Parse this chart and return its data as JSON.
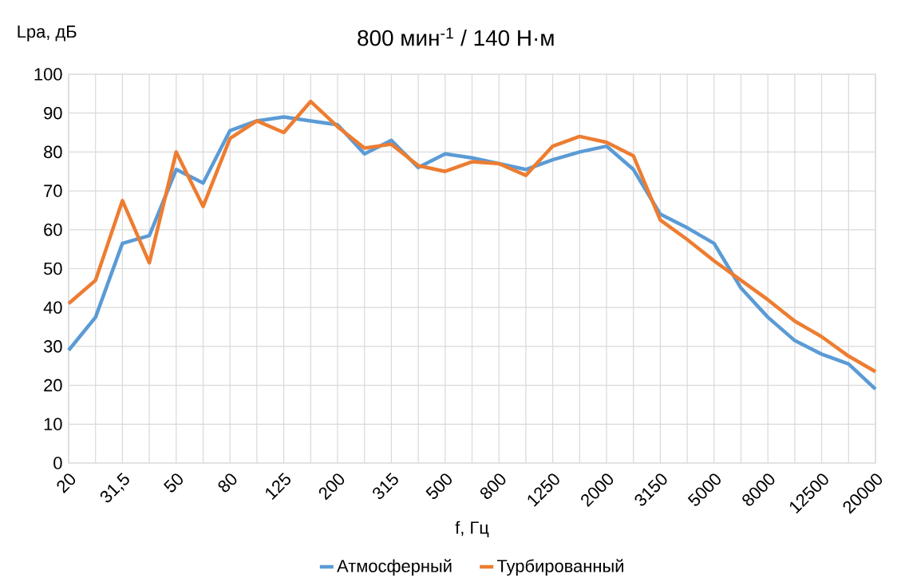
{
  "chart_data": {
    "type": "line",
    "title": "800 мин$^{-1}$ / 140 Н·м",
    "xlabel": "f, Гц",
    "ylabel": "Lpa, дБ",
    "categories": [
      "20",
      null,
      "31,5",
      null,
      "50",
      null,
      "80",
      null,
      "125",
      null,
      "200",
      null,
      "315",
      null,
      "500",
      null,
      "800",
      null,
      "1250",
      null,
      "2000",
      null,
      "3150",
      null,
      "5000",
      null,
      "8000",
      null,
      "12500",
      null,
      "20000"
    ],
    "series": [
      {
        "name": "Атмосферный",
        "color": "#5b9bd5",
        "values": [
          29,
          37.5,
          56.5,
          58.5,
          75.5,
          72,
          85.5,
          88,
          89,
          88,
          87,
          79.5,
          83,
          76,
          79.5,
          78.5,
          77,
          75.5,
          78,
          80,
          81.5,
          75.5,
          64,
          60.5,
          56.5,
          45,
          37.5,
          31.5,
          28,
          25.5,
          19
        ]
      },
      {
        "name": "Турбированный",
        "color": "#ed7d31",
        "values": [
          41,
          47,
          67.5,
          51.5,
          80,
          66,
          83.5,
          88,
          85,
          93,
          86.5,
          81,
          82,
          76.5,
          75,
          77.5,
          77,
          74,
          81.5,
          84,
          82.5,
          79,
          62.5,
          57.5,
          52,
          47,
          42,
          36.5,
          32.5,
          27.5,
          23.5
        ]
      }
    ],
    "ylim": [
      0,
      100
    ],
    "yticks": [
      0,
      10,
      20,
      30,
      40,
      50,
      60,
      70,
      80,
      90,
      100
    ],
    "grid": true,
    "legend": "bottom",
    "marker": "none",
    "line_style": "solid"
  }
}
